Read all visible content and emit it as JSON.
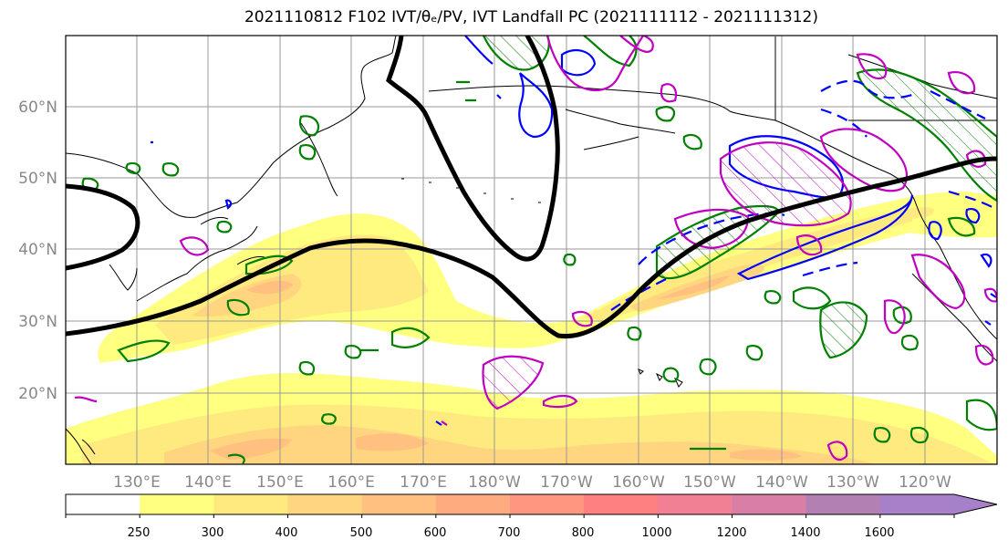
{
  "title": "2021110812 F102 IVT/θₑ/PV, IVT Landfall PC (2021111112 - 2021111312)",
  "lat_labels": [
    "60°N",
    "50°N",
    "40°N",
    "30°N",
    "20°N"
  ],
  "lon_labels": [
    "130°E",
    "140°E",
    "150°E",
    "160°E",
    "170°E",
    "180°W",
    "170°W",
    "160°W",
    "150°W",
    "140°W",
    "130°W",
    "120°W"
  ],
  "colorbar": {
    "tick_labels": [
      "250",
      "300",
      "400",
      "500",
      "600",
      "700",
      "800",
      "1000",
      "1200",
      "1400",
      "1600"
    ],
    "colors": [
      "#ffffff",
      "#ffff80",
      "#ffea80",
      "#ffd580",
      "#ffc080",
      "#ffab80",
      "#ff9680",
      "#ff8080",
      "#f28095",
      "#d97fa6",
      "#b380b3",
      "#a680c8"
    ]
  },
  "colors": {
    "pv_contour": "#008000",
    "theta_e_contour": "#0000ff",
    "ivt_pc_contour": "#c000c0",
    "jet_line": "#000000",
    "coastline": "#000000",
    "grid": "#999999"
  }
}
